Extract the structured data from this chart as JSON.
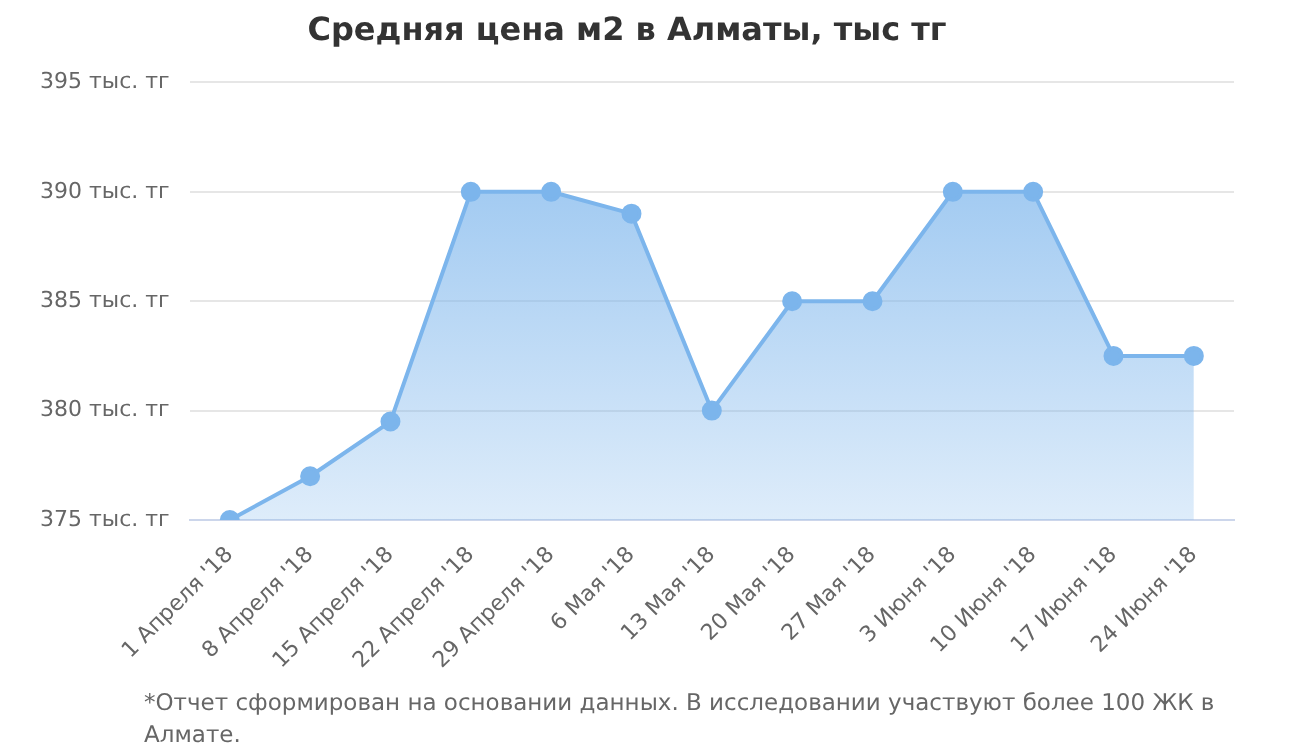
{
  "chart_data": {
    "type": "area",
    "title": "Средняя цена м2 в Алматы, тыс тг",
    "categories": [
      "1 Апреля '18",
      "8 Апреля '18",
      "15 Апреля '18",
      "22 Апреля '18",
      "29 Апреля '18",
      "6 Мая '18",
      "13 Мая '18",
      "20 Мая '18",
      "27 Мая '18",
      "3 Июня '18",
      "10 Июня '18",
      "17 Июня '18",
      "24 Июня '18"
    ],
    "series": [
      {
        "color": "#7cb5ec",
        "values": [
          375,
          377,
          379.5,
          390,
          390,
          389,
          380,
          385,
          385,
          390,
          390,
          382.5,
          382.5
        ]
      }
    ],
    "ylim": [
      375,
      395
    ],
    "yticks": [
      {
        "value": 375,
        "label": "375 тыс. тг"
      },
      {
        "value": 380,
        "label": "380 тыс. тг"
      },
      {
        "value": 385,
        "label": "385 тыс. тг"
      },
      {
        "value": 390,
        "label": "390 тыс. тг"
      },
      {
        "value": 395,
        "label": "395 тыс. тг"
      }
    ],
    "grid": "y",
    "marker": "circle",
    "legend": false,
    "annotations": [
      "*Отчет сформирован на основании данных. В исследовании участвуют более 100 ЖК в Алмате."
    ]
  }
}
